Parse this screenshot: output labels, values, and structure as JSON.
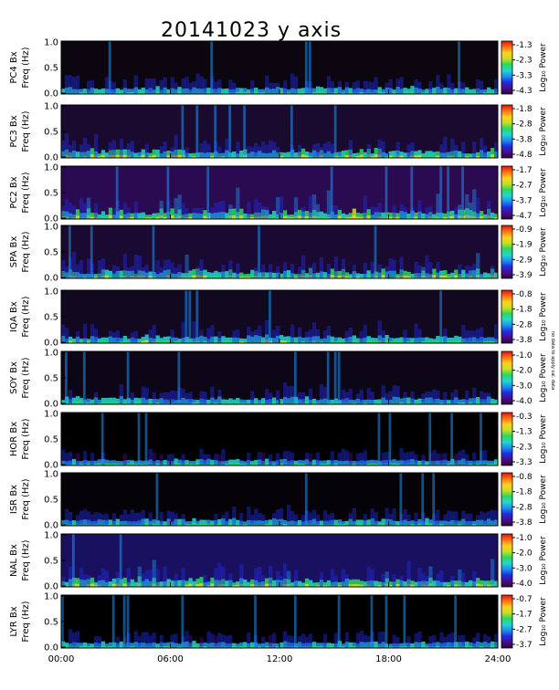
{
  "chart_data": {
    "type": "heatmap",
    "title": "20141023 y axis",
    "x_ticks": [
      "00:00",
      "06:00",
      "12:00",
      "18:00",
      "24:00"
    ],
    "x_range_hours": [
      0,
      24
    ],
    "y_ticks": [
      "0.0",
      "0.5",
      "1.0"
    ],
    "y_range_hz": [
      0,
      1.0
    ],
    "colorbar_label": "Log₁₀ Power",
    "colormap": [
      "#2a0a3a",
      "#4b0c8a",
      "#1f2de0",
      "#1f8ff0",
      "#20d8d0",
      "#2ad860",
      "#c8e020",
      "#ffd020",
      "#ff7010",
      "#e01010"
    ],
    "side_note": "no data to apply cal. data",
    "panels": [
      {
        "station": "PC4 Bx",
        "ylabel_freq": "Freq (Hz)",
        "cbar": [
          "-1.3",
          "-2.3",
          "-3.3",
          "-4.3"
        ],
        "bg": "#0b0610",
        "intensity": 0.45
      },
      {
        "station": "PC3 Bx",
        "ylabel_freq": "Freq (Hz)",
        "cbar": [
          "-1.8",
          "-2.8",
          "-3.8",
          "-4.8"
        ],
        "bg": "#1a0a30",
        "intensity": 0.65
      },
      {
        "station": "PC2 Bx",
        "ylabel_freq": "Freq (Hz)",
        "cbar": [
          "-1.7",
          "-2.7",
          "-3.7",
          "-4.7"
        ],
        "bg": "#2a0a50",
        "intensity": 0.8
      },
      {
        "station": "SPA Bx",
        "ylabel_freq": "Freq (Hz)",
        "cbar": [
          "-0.9",
          "-1.9",
          "-2.9",
          "-3.9"
        ],
        "bg": "#1a0930",
        "intensity": 0.7
      },
      {
        "station": "IQA Bx",
        "ylabel_freq": "Freq (Hz)",
        "cbar": [
          "-0.8",
          "-1.8",
          "-2.8",
          "-3.8"
        ],
        "bg": "#120820",
        "intensity": 0.5
      },
      {
        "station": "SOY Bx",
        "ylabel_freq": "Freq (Hz)",
        "cbar": [
          "-1.0",
          "-2.0",
          "-3.0",
          "-4.0"
        ],
        "bg": "#0d0616",
        "intensity": 0.45
      },
      {
        "station": "HOR Bx",
        "ylabel_freq": "Freq (Hz)",
        "cbar": [
          "-0.3",
          "-1.3",
          "-2.3",
          "-3.3"
        ],
        "bg": "#000000",
        "intensity": 0.3
      },
      {
        "station": "ISR Bx",
        "ylabel_freq": "Freq (Hz)",
        "cbar": [
          "-0.8",
          "-1.8",
          "-2.8",
          "-3.8"
        ],
        "bg": "#050308",
        "intensity": 0.4
      },
      {
        "station": "NAL Bx",
        "ylabel_freq": "Freq (Hz)",
        "cbar": [
          "-1.0",
          "-2.0",
          "-3.0",
          "-4.0"
        ],
        "bg": "#1a1060",
        "intensity": 0.75
      },
      {
        "station": "LYR Bx",
        "ylabel_freq": "Freq (Hz)",
        "cbar": [
          "-0.7",
          "-1.7",
          "-2.7",
          "-3.7"
        ],
        "bg": "#000000",
        "intensity": 0.35
      }
    ]
  }
}
